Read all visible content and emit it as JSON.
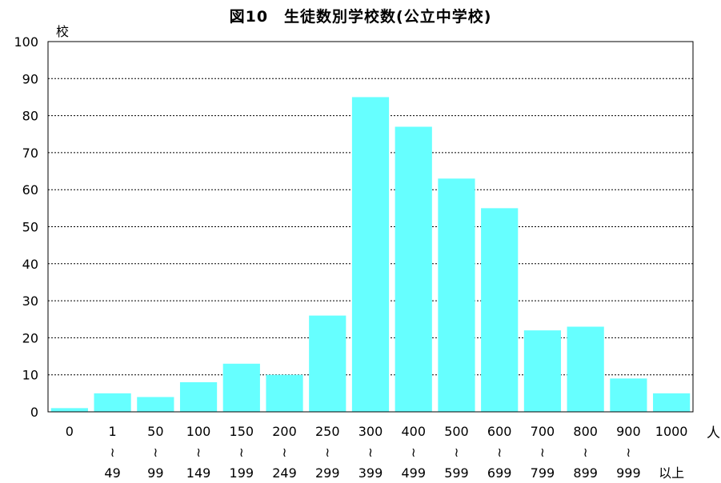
{
  "chart_data": {
    "type": "bar",
    "title": "図10　生徒数別学校数(公立中学校)",
    "ylabel": "校",
    "xlabel": "人",
    "ylim": [
      0,
      100
    ],
    "yticks": [
      0,
      10,
      20,
      30,
      40,
      50,
      60,
      70,
      80,
      90,
      100
    ],
    "grid": true,
    "bar_color": "#66ffff",
    "categories": [
      {
        "top": "0",
        "mid": "",
        "bottom": ""
      },
      {
        "top": "1",
        "mid": "≀",
        "bottom": "49"
      },
      {
        "top": "50",
        "mid": "≀",
        "bottom": "99"
      },
      {
        "top": "100",
        "mid": "≀",
        "bottom": "149"
      },
      {
        "top": "150",
        "mid": "≀",
        "bottom": "199"
      },
      {
        "top": "200",
        "mid": "≀",
        "bottom": "249"
      },
      {
        "top": "250",
        "mid": "≀",
        "bottom": "299"
      },
      {
        "top": "300",
        "mid": "≀",
        "bottom": "399"
      },
      {
        "top": "400",
        "mid": "≀",
        "bottom": "499"
      },
      {
        "top": "500",
        "mid": "≀",
        "bottom": "599"
      },
      {
        "top": "600",
        "mid": "≀",
        "bottom": "699"
      },
      {
        "top": "700",
        "mid": "≀",
        "bottom": "799"
      },
      {
        "top": "800",
        "mid": "≀",
        "bottom": "899"
      },
      {
        "top": "900",
        "mid": "≀",
        "bottom": "999"
      },
      {
        "top": "1000",
        "mid": "",
        "bottom": "以上"
      }
    ],
    "values": [
      1,
      5,
      4,
      8,
      13,
      10,
      26,
      85,
      77,
      63,
      55,
      22,
      23,
      9,
      5
    ]
  }
}
